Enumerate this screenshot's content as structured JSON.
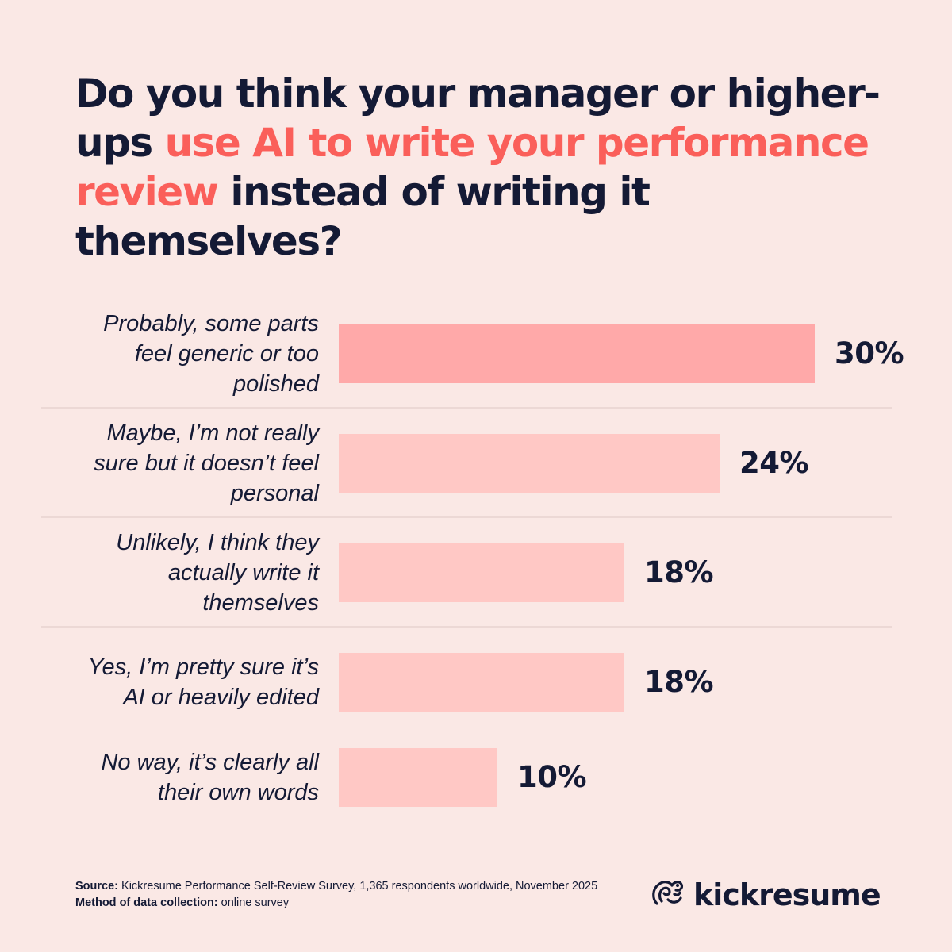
{
  "title": {
    "part1": "Do you think your manager or higher-ups ",
    "accent": "use AI to write your performance review",
    "part2": " instead of writing it themselves?"
  },
  "colors": {
    "background": "#fae8e5",
    "text": "#141a35",
    "accent": "#fa5f5a",
    "bar_top": "#ffa9a9",
    "bar": "#ffc8c5",
    "divider": "#e8d3d0"
  },
  "chart_data": {
    "type": "bar",
    "orientation": "horizontal",
    "categories": [
      "Probably, some parts feel generic or too polished",
      "Maybe, I’m not really sure but it doesn’t feel personal",
      "Unlikely, I think they actually write it themselves",
      "Yes, I’m pretty sure it’s AI or heavily edited",
      "No way, it’s clearly all their own words"
    ],
    "values": [
      30,
      24,
      18,
      18,
      10
    ],
    "value_labels": [
      "30%",
      "24%",
      "18%",
      "18%",
      "10%"
    ],
    "unit": "%",
    "xlim": [
      0,
      30
    ]
  },
  "footer": {
    "source_label": "Source:",
    "source_text": " Kickresume Performance Self-Review Survey, 1,365 respondents worldwide, November 2025",
    "method_label": "Method of data collection:",
    "method_text": " online survey"
  },
  "brand": {
    "name": "kickresume",
    "icon": "kickresume-logo-icon"
  }
}
